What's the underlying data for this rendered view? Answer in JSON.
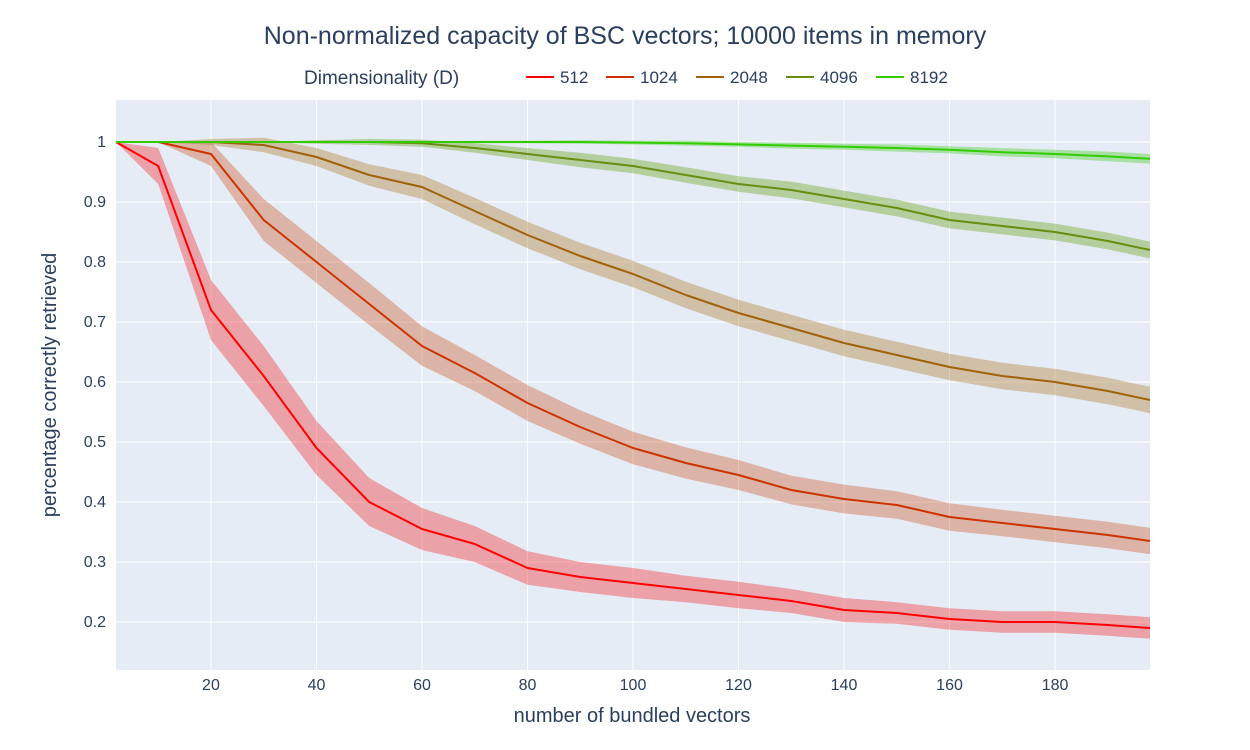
{
  "chart_data": {
    "type": "line",
    "title": "Non-normalized capacity of BSC vectors; 10000 items in memory",
    "xlabel": "number of bundled vectors",
    "ylabel": "percentage correctly retrieved",
    "xlim": [
      2,
      198
    ],
    "ylim": [
      0.12,
      1.07
    ],
    "x_ticks": [
      20,
      40,
      60,
      80,
      100,
      120,
      140,
      160,
      180
    ],
    "y_ticks": [
      0.2,
      0.3,
      0.4,
      0.5,
      0.6,
      0.7,
      0.8,
      0.9,
      1
    ],
    "grid": true,
    "background": "#e5ecf6",
    "legend": {
      "title": "Dimensionality (D)",
      "placement": "top",
      "orientation": "horizontal"
    },
    "x": [
      2,
      10,
      20,
      30,
      40,
      50,
      60,
      70,
      80,
      90,
      100,
      110,
      120,
      130,
      140,
      150,
      160,
      170,
      180,
      190,
      198
    ],
    "series": [
      {
        "name": "512",
        "color": "#ff0000",
        "band": "rgba(240,60,60,0.42)",
        "values": [
          1.0,
          0.96,
          0.72,
          0.61,
          0.49,
          0.4,
          0.355,
          0.33,
          0.29,
          0.275,
          0.265,
          0.255,
          0.245,
          0.235,
          0.22,
          0.215,
          0.205,
          0.2,
          0.2,
          0.195,
          0.19
        ],
        "band_width": [
          0.0,
          0.03,
          0.05,
          0.05,
          0.045,
          0.04,
          0.035,
          0.03,
          0.028,
          0.025,
          0.025,
          0.022,
          0.022,
          0.02,
          0.02,
          0.018,
          0.018,
          0.018,
          0.018,
          0.018,
          0.018
        ]
      },
      {
        "name": "1024",
        "color": "#cc3300",
        "band": "rgba(204,90,40,0.38)",
        "values": [
          1.0,
          1.0,
          0.98,
          0.87,
          0.8,
          0.73,
          0.66,
          0.615,
          0.565,
          0.525,
          0.49,
          0.465,
          0.445,
          0.42,
          0.405,
          0.395,
          0.375,
          0.365,
          0.355,
          0.345,
          0.335
        ],
        "band_width": [
          0.0,
          0.0,
          0.02,
          0.035,
          0.035,
          0.035,
          0.033,
          0.03,
          0.03,
          0.028,
          0.027,
          0.026,
          0.025,
          0.024,
          0.024,
          0.023,
          0.023,
          0.022,
          0.022,
          0.022,
          0.022
        ]
      },
      {
        "name": "2048",
        "color": "#a0620a",
        "band": "rgba(170,120,40,0.38)",
        "values": [
          1.0,
          1.0,
          1.0,
          0.995,
          0.975,
          0.945,
          0.925,
          0.885,
          0.845,
          0.81,
          0.78,
          0.745,
          0.715,
          0.69,
          0.665,
          0.645,
          0.625,
          0.61,
          0.6,
          0.585,
          0.57
        ],
        "band_width": [
          0.0,
          0.0,
          0.005,
          0.012,
          0.015,
          0.018,
          0.02,
          0.022,
          0.022,
          0.022,
          0.022,
          0.022,
          0.022,
          0.022,
          0.022,
          0.022,
          0.022,
          0.022,
          0.022,
          0.022,
          0.022
        ]
      },
      {
        "name": "4096",
        "color": "#6a8c10",
        "band": "rgba(120,170,50,0.45)",
        "values": [
          1.0,
          1.0,
          1.0,
          1.0,
          1.0,
          1.0,
          0.998,
          0.99,
          0.98,
          0.97,
          0.96,
          0.945,
          0.93,
          0.92,
          0.905,
          0.89,
          0.87,
          0.86,
          0.85,
          0.835,
          0.82
        ],
        "band_width": [
          0.0,
          0.0,
          0.0,
          0.0,
          0.003,
          0.005,
          0.006,
          0.008,
          0.01,
          0.012,
          0.012,
          0.013,
          0.013,
          0.014,
          0.014,
          0.014,
          0.014,
          0.014,
          0.014,
          0.014,
          0.014
        ]
      },
      {
        "name": "8192",
        "color": "#33cc00",
        "band": "rgba(90,210,60,0.45)",
        "values": [
          1.0,
          1.0,
          1.0,
          1.0,
          1.0,
          1.0,
          1.0,
          1.0,
          1.0,
          1.0,
          0.999,
          0.998,
          0.996,
          0.994,
          0.992,
          0.99,
          0.987,
          0.983,
          0.98,
          0.976,
          0.972
        ],
        "band_width": [
          0.0,
          0.0,
          0.0,
          0.0,
          0.0,
          0.0,
          0.001,
          0.002,
          0.002,
          0.003,
          0.003,
          0.004,
          0.004,
          0.005,
          0.005,
          0.006,
          0.006,
          0.007,
          0.007,
          0.008,
          0.008
        ]
      }
    ]
  }
}
